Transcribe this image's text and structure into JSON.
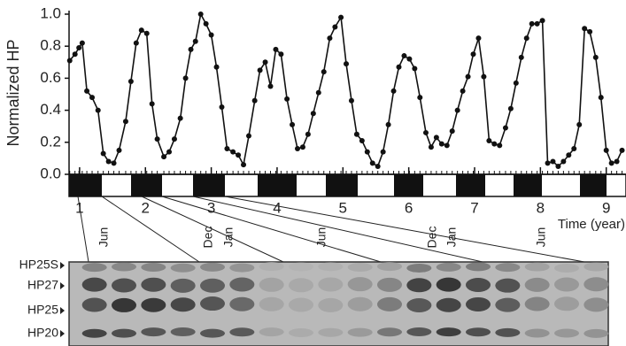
{
  "chart_data": {
    "type": "line",
    "y_label": "Normalized HP",
    "x_label": "Time (year)",
    "x": [
      0.85,
      0.93,
      0.99,
      1.04,
      1.11,
      1.19,
      1.28,
      1.36,
      1.44,
      1.52,
      1.6,
      1.7,
      1.78,
      1.86,
      1.94,
      2.02,
      2.1,
      2.18,
      2.28,
      2.36,
      2.44,
      2.53,
      2.61,
      2.69,
      2.76,
      2.84,
      2.92,
      3.0,
      3.08,
      3.16,
      3.24,
      3.33,
      3.41,
      3.49,
      3.57,
      3.66,
      3.74,
      3.82,
      3.9,
      3.98,
      4.06,
      4.15,
      4.23,
      4.31,
      4.39,
      4.47,
      4.55,
      4.63,
      4.71,
      4.8,
      4.88,
      4.97,
      5.05,
      5.13,
      5.21,
      5.29,
      5.37,
      5.45,
      5.53,
      5.61,
      5.69,
      5.77,
      5.85,
      5.93,
      6.01,
      6.09,
      6.17,
      6.26,
      6.34,
      6.42,
      6.5,
      6.58,
      6.66,
      6.74,
      6.82,
      6.9,
      6.98,
      7.06,
      7.14,
      7.22,
      7.3,
      7.38,
      7.47,
      7.55,
      7.63,
      7.71,
      7.79,
      7.87,
      7.95,
      8.03,
      8.11,
      8.19,
      8.27,
      8.35,
      8.43,
      8.51,
      8.59,
      8.67,
      8.75,
      8.84,
      8.92,
      9.0,
      9.08,
      9.16,
      9.24
    ],
    "values": [
      0.71,
      0.75,
      0.79,
      0.82,
      0.52,
      0.48,
      0.4,
      0.13,
      0.08,
      0.07,
      0.15,
      0.33,
      0.58,
      0.82,
      0.9,
      0.88,
      0.44,
      0.22,
      0.11,
      0.14,
      0.22,
      0.35,
      0.6,
      0.78,
      0.83,
      1.0,
      0.94,
      0.87,
      0.67,
      0.42,
      0.16,
      0.14,
      0.12,
      0.06,
      0.24,
      0.46,
      0.65,
      0.7,
      0.55,
      0.78,
      0.75,
      0.47,
      0.31,
      0.16,
      0.17,
      0.25,
      0.38,
      0.51,
      0.64,
      0.85,
      0.92,
      0.98,
      0.69,
      0.46,
      0.25,
      0.21,
      0.14,
      0.07,
      0.05,
      0.14,
      0.31,
      0.52,
      0.67,
      0.74,
      0.72,
      0.66,
      0.48,
      0.26,
      0.17,
      0.23,
      0.19,
      0.18,
      0.27,
      0.4,
      0.52,
      0.61,
      0.75,
      0.85,
      0.61,
      0.21,
      0.19,
      0.18,
      0.29,
      0.41,
      0.57,
      0.73,
      0.85,
      0.94,
      0.94,
      0.96,
      0.07,
      0.08,
      0.05,
      0.08,
      0.12,
      0.16,
      0.31,
      0.91,
      0.89,
      0.73,
      0.48,
      0.15,
      0.07,
      0.08,
      0.15
    ],
    "color": "#111111",
    "xlim": [
      0.84,
      9.3
    ],
    "xticks": [
      1,
      2,
      3,
      4,
      5,
      6,
      7,
      8,
      9
    ],
    "ylim": [
      0,
      1
    ],
    "yticks": [
      {
        "value": 0,
        "label": "0.0"
      },
      {
        "value": 0.2,
        "label": "0.2"
      },
      {
        "value": 0.4,
        "label": "0.4"
      },
      {
        "value": 0.6,
        "label": "0.6"
      },
      {
        "value": 0.8,
        "label": "0.8"
      },
      {
        "value": 1,
        "label": "1.0"
      }
    ]
  },
  "blot": {
    "band_labels": [
      "HP25S",
      "HP27",
      "HP25",
      "HP20"
    ],
    "month_labels": [
      "Jun",
      "Dec",
      "Jan",
      "Jun",
      "Dec",
      "Jan",
      "Jun"
    ]
  }
}
